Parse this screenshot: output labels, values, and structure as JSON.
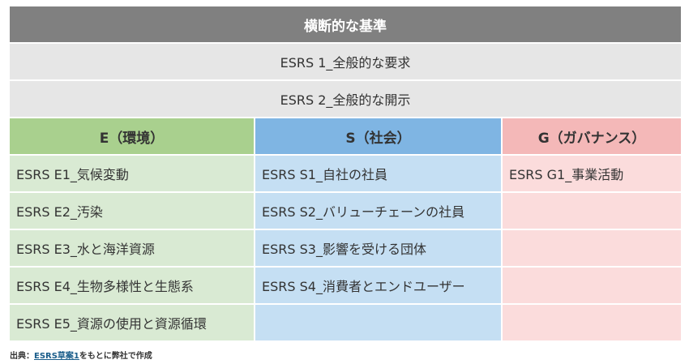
{
  "header": {
    "title": "横断的な基準"
  },
  "cross_cutting": [
    "ESRS 1_全般的な要求",
    "ESRS 2_全般的な開示"
  ],
  "categories": {
    "e": "E（環境）",
    "s": "S（社会）",
    "g": "G（ガバナンス）"
  },
  "rows": [
    {
      "e": "ESRS E1_気候変動",
      "s": "ESRS S1_自社の社員",
      "g": "ESRS G1_事業活動"
    },
    {
      "e": "ESRS E2_汚染",
      "s": "ESRS S2_バリューチェーンの社員",
      "g": ""
    },
    {
      "e": "ESRS E3_水と海洋資源",
      "s": "ESRS S3_影響を受ける団体",
      "g": ""
    },
    {
      "e": "ESRS E4_生物多様性と生態系",
      "s": "ESRS S4_消費者とエンドユーザー",
      "g": ""
    },
    {
      "e": "ESRS E5_資源の使用と資源循環",
      "s": "",
      "g": ""
    }
  ],
  "source": {
    "prefix": "出典：",
    "link": "ESRS草案1",
    "suffix": "をもとに弊社で作成"
  },
  "colors": {
    "header": "#808080",
    "gray": "#e6e6e6",
    "e_header": "#a9d08e",
    "s_header": "#7fb5e3",
    "g_header": "#f4b8b8",
    "e_cell": "#d9ead3",
    "s_cell": "#c5dff3",
    "g_cell": "#fbdcdc"
  }
}
